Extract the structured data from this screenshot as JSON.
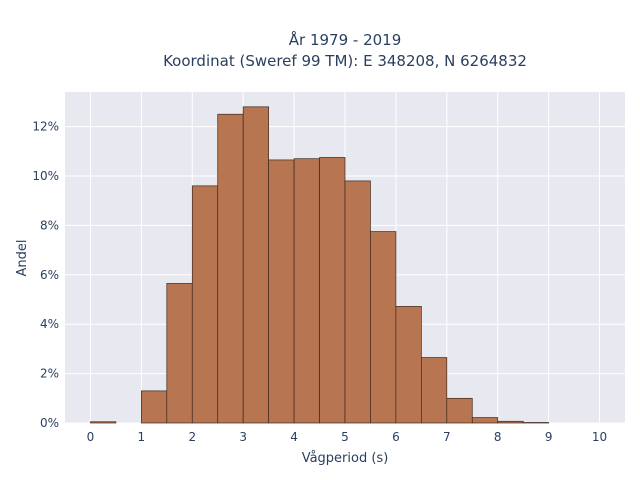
{
  "chart_data": {
    "type": "bar",
    "title": "År 1979 - 2019",
    "subtitle": "Koordinat (Sweref 99 TM): E 348208, N 6264832",
    "xlabel": "Vågperiod (s)",
    "ylabel": "Andel",
    "bin_width": 0.5,
    "bin_starts": [
      0,
      0.5,
      1,
      1.5,
      2,
      2.5,
      3,
      3.5,
      4,
      4.5,
      5,
      5.5,
      6,
      6.5,
      7,
      7.5,
      8,
      8.5,
      9,
      9.5
    ],
    "values": [
      0.05,
      0,
      1.3,
      5.65,
      9.6,
      12.5,
      12.8,
      10.65,
      10.7,
      10.75,
      9.8,
      7.75,
      4.72,
      2.65,
      1.0,
      0.22,
      0.07,
      0.02,
      0,
      0
    ],
    "xlim": [
      -0.5,
      10.5
    ],
    "ylim": [
      0,
      13.4
    ],
    "x_ticks": [
      0,
      1,
      2,
      3,
      4,
      5,
      6,
      7,
      8,
      9,
      10
    ],
    "y_ticks": [
      0,
      2,
      4,
      6,
      8,
      10,
      12
    ],
    "y_tick_suffix": "%",
    "grid": true,
    "bar_color": "#b87551",
    "bar_edge_color": "#3d2a1f",
    "plot_background": "#e8e8f0"
  }
}
